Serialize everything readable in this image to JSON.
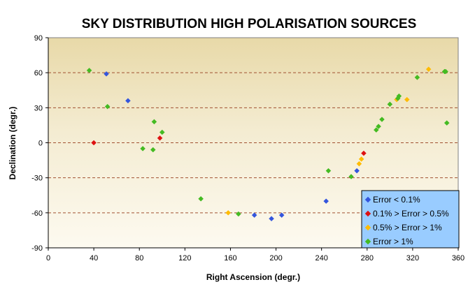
{
  "chart_data": {
    "type": "scatter",
    "title": "SKY DISTRIBUTION HIGH POLARISATION SOURCES",
    "xlabel": "Right Ascension (degr.)",
    "ylabel": "Declination (degr.)",
    "xlim": [
      0,
      360
    ],
    "ylim": [
      -90,
      90
    ],
    "xticks": [
      0,
      40,
      80,
      120,
      160,
      200,
      240,
      280,
      320,
      360
    ],
    "yticks": [
      -90,
      -60,
      -30,
      0,
      30,
      60,
      90
    ],
    "grid": "horizontal dashed",
    "legend_position": "bottom-right",
    "series": [
      {
        "name": "Error < 0.1%",
        "color": "#3355dd",
        "points": [
          {
            "x": 51,
            "y": 59
          },
          {
            "x": 70,
            "y": 36
          },
          {
            "x": 181,
            "y": -62
          },
          {
            "x": 196,
            "y": -65
          },
          {
            "x": 205,
            "y": -62
          },
          {
            "x": 244,
            "y": -50
          },
          {
            "x": 271,
            "y": -24
          }
        ]
      },
      {
        "name": "0.1% > Error > 0.5%",
        "color": "#dd1111",
        "points": [
          {
            "x": 40,
            "y": 0
          },
          {
            "x": 98,
            "y": 4
          },
          {
            "x": 277,
            "y": -9
          }
        ]
      },
      {
        "name": "0.5% > Error > 1%",
        "color": "#ffbb00",
        "points": [
          {
            "x": 158,
            "y": -60
          },
          {
            "x": 273,
            "y": -18
          },
          {
            "x": 275,
            "y": -14
          },
          {
            "x": 306,
            "y": 37
          },
          {
            "x": 315,
            "y": 37
          },
          {
            "x": 334,
            "y": 63
          }
        ]
      },
      {
        "name": "Error > 1%",
        "color": "#44bb22",
        "points": [
          {
            "x": 36,
            "y": 62
          },
          {
            "x": 52,
            "y": 31
          },
          {
            "x": 83,
            "y": -5
          },
          {
            "x": 92,
            "y": -6
          },
          {
            "x": 93,
            "y": 18
          },
          {
            "x": 100,
            "y": 9
          },
          {
            "x": 134,
            "y": -48
          },
          {
            "x": 167,
            "y": -61
          },
          {
            "x": 246,
            "y": -24
          },
          {
            "x": 266,
            "y": -29
          },
          {
            "x": 288,
            "y": 11
          },
          {
            "x": 290,
            "y": 14
          },
          {
            "x": 293,
            "y": 20
          },
          {
            "x": 300,
            "y": 33
          },
          {
            "x": 307,
            "y": 38
          },
          {
            "x": 308,
            "y": 40
          },
          {
            "x": 324,
            "y": 56
          },
          {
            "x": 348,
            "y": 61
          },
          {
            "x": 349,
            "y": 61
          },
          {
            "x": 350,
            "y": 17
          }
        ]
      }
    ]
  }
}
